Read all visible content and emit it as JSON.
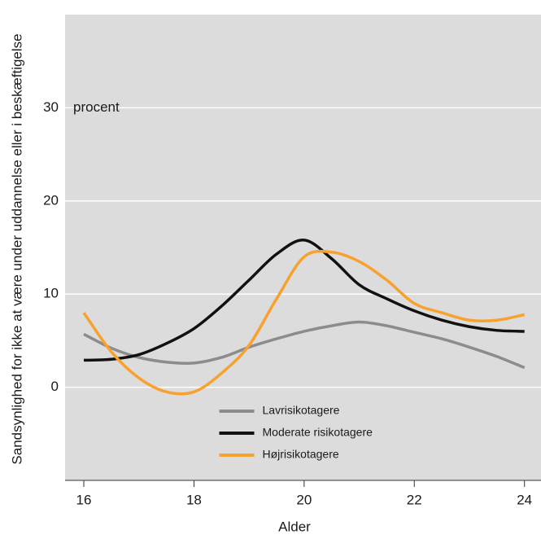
{
  "chart_data": {
    "type": "line",
    "y_axis_label": "Sandsynlighed for ikke at være under uddannelse eller i beskæftigelse",
    "x_axis_label": "Alder",
    "annotation": "procent",
    "x": [
      16,
      16.5,
      17,
      17.5,
      18,
      18.5,
      19,
      19.5,
      20,
      20.5,
      21,
      21.5,
      22,
      22.5,
      23,
      23.5,
      24
    ],
    "series": [
      {
        "name": "Lavrisikotagere",
        "color": "#8c8c8c",
        "values": [
          5.7,
          4.2,
          3.2,
          2.7,
          2.6,
          3.2,
          4.3,
          5.2,
          6.0,
          6.6,
          7.0,
          6.6,
          5.9,
          5.2,
          4.3,
          3.3,
          2.1
        ]
      },
      {
        "name": "Moderate risikotagere",
        "color": "#111111",
        "values": [
          2.9,
          3.0,
          3.5,
          4.7,
          6.3,
          8.7,
          11.5,
          14.3,
          15.8,
          13.8,
          11.0,
          9.5,
          8.2,
          7.2,
          6.5,
          6.1,
          6.0
        ]
      },
      {
        "name": "Højrisikotagere",
        "color": "#f7a12f",
        "values": [
          8.0,
          3.8,
          1.0,
          -0.5,
          -0.5,
          1.5,
          4.5,
          9.5,
          14.0,
          14.5,
          13.5,
          11.5,
          9.0,
          8.0,
          7.2,
          7.2,
          7.8
        ]
      }
    ],
    "xlim": [
      15.66,
      24.3
    ],
    "xticks": [
      16,
      18,
      20,
      22,
      24
    ],
    "ylim": [
      -10,
      40
    ],
    "yticks": [
      0,
      10,
      20,
      30
    ],
    "grid": true,
    "legend_loc": "lower center",
    "background": "#dcdcdc"
  }
}
